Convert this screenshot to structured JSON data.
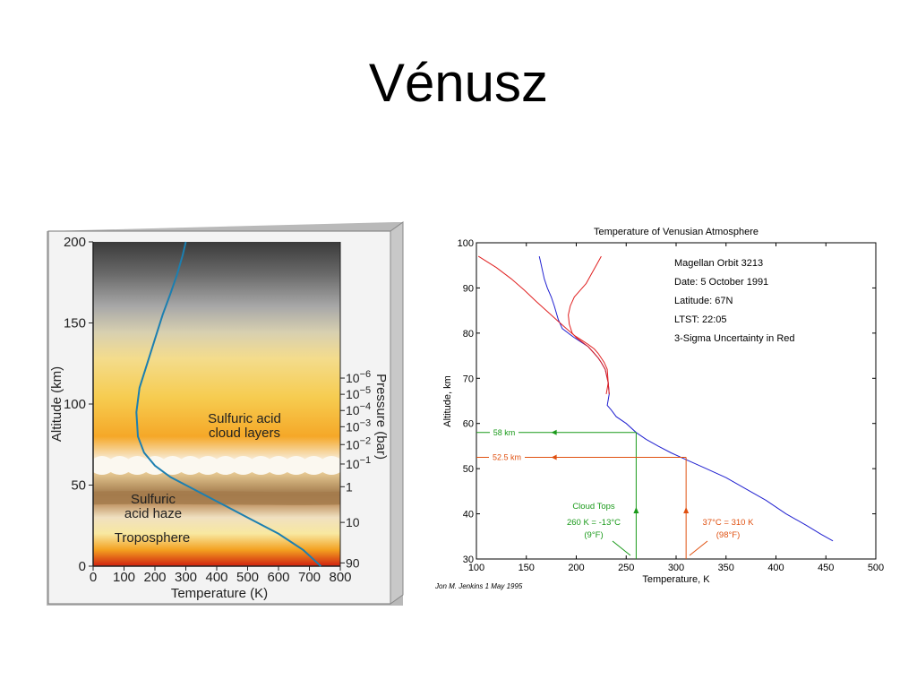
{
  "slide": {
    "title": "Vénusz"
  },
  "chart_data": [
    {
      "type": "line",
      "title": "",
      "xlabel": "Temperature (K)",
      "ylabel": "Altitude (km)",
      "y2label": "Pressure (bar)",
      "xlim": [
        0,
        800
      ],
      "ylim": [
        0,
        200
      ],
      "x_ticks": [
        "0",
        "100",
        "200",
        "300",
        "400",
        "500",
        "600",
        "700",
        "800"
      ],
      "y_ticks": [
        "0",
        "50",
        "100",
        "150",
        "200"
      ],
      "pressure_ticks": [
        {
          "label": "10",
          "exp": "−6",
          "alt": 116
        },
        {
          "label": "10",
          "exp": "−5",
          "alt": 106
        },
        {
          "label": "10",
          "exp": "−4",
          "alt": 96
        },
        {
          "label": "10",
          "exp": "−3",
          "alt": 86
        },
        {
          "label": "10",
          "exp": "−2",
          "alt": 75
        },
        {
          "label": "10",
          "exp": "−1",
          "alt": 63
        },
        {
          "label": "1",
          "exp": "",
          "alt": 49
        },
        {
          "label": "10",
          "exp": "",
          "alt": 27
        },
        {
          "label": "90",
          "exp": "",
          "alt": 2
        }
      ],
      "regions": {
        "cloud": [
          "Sulfuric acid",
          "cloud layers"
        ],
        "haze": [
          "Sulfuric",
          "acid haze"
        ],
        "troposphere": "Troposphere"
      },
      "series": [
        {
          "x": [
            737,
            680,
            600,
            500,
            400,
            320,
            250,
            200,
            165,
            145,
            140,
            150,
            175,
            200,
            225,
            250,
            272,
            290,
            300
          ],
          "y": [
            0,
            10,
            20,
            30,
            40,
            48,
            55,
            62,
            70,
            80,
            95,
            110,
            125,
            140,
            155,
            168,
            180,
            192,
            200
          ]
        }
      ]
    },
    {
      "type": "line",
      "title": "Temperature of Venusian Atmosphere",
      "xlabel": "Temperature, K",
      "ylabel": "Altitude, km",
      "xlim": [
        100,
        500
      ],
      "ylim": [
        30,
        100
      ],
      "x_ticks": [
        "100",
        "150",
        "200",
        "250",
        "300",
        "350",
        "400",
        "450",
        "500"
      ],
      "y_ticks": [
        "30",
        "40",
        "50",
        "60",
        "70",
        "80",
        "90",
        "100"
      ],
      "info": [
        "Magellan Orbit 3213",
        "Date: 5 October 1991",
        "Latitude: 67N",
        "LTST: 22:05",
        "3-Sigma Uncertainty in Red"
      ],
      "credit": "Jon M. Jenkins  1 May 1995",
      "series": [
        {
          "color": "#2020d0",
          "x": [
            457,
            445,
            430,
            410,
            390,
            370,
            350,
            330,
            310,
            295,
            282,
            270,
            260,
            250,
            240,
            235,
            231,
            233,
            232,
            229,
            225,
            222,
            218,
            212,
            205,
            198,
            192,
            186,
            182,
            178,
            175,
            171,
            168,
            166,
            164,
            163
          ],
          "y": [
            34,
            35.5,
            37.5,
            40,
            43,
            45.5,
            48,
            50,
            52,
            53.5,
            55,
            56.5,
            58,
            60,
            61.5,
            63,
            64,
            66.5,
            69,
            72,
            73.5,
            74.5,
            75.5,
            77,
            78,
            79,
            80,
            81,
            83,
            86,
            88,
            90,
            92,
            94,
            96,
            97
          ]
        },
        {
          "color": "#e02020",
          "x": [
            230,
            232,
            231,
            228,
            225,
            222,
            218,
            212,
            205,
            198,
            190,
            180,
            170,
            160,
            148,
            135,
            120,
            102
          ],
          "y": [
            66.5,
            69,
            72,
            73.5,
            74.5,
            75.5,
            76.5,
            77.5,
            78.5,
            79.5,
            81,
            83,
            85,
            87,
            89.5,
            92,
            94.5,
            97
          ]
        },
        {
          "color": "#e02020",
          "x": [
            233,
            232,
            229,
            225,
            222,
            218,
            212,
            206,
            200,
            196,
            193,
            192,
            194,
            198,
            204,
            210,
            215,
            220,
            225
          ],
          "y": [
            66.5,
            69,
            72,
            73.5,
            74.5,
            75.5,
            77,
            78,
            79,
            80,
            82,
            84,
            86,
            88,
            89.5,
            91,
            93,
            95,
            97
          ]
        }
      ],
      "annotations": {
        "alt58": {
          "label": "58 km",
          "alt": 58,
          "temp": 260,
          "color": "#1a9a1a"
        },
        "alt52": {
          "label": "52.5 km",
          "alt": 52.5,
          "temp": 310,
          "color": "#e05010"
        },
        "cloud_tops": {
          "title": "Cloud Tops",
          "line1": "260 K = -13°C",
          "line2": "(9°F)",
          "color": "#1a9a1a"
        },
        "warm": {
          "line1": "37°C = 310 K",
          "line2": "(98°F)",
          "color": "#e05010"
        }
      }
    }
  ]
}
